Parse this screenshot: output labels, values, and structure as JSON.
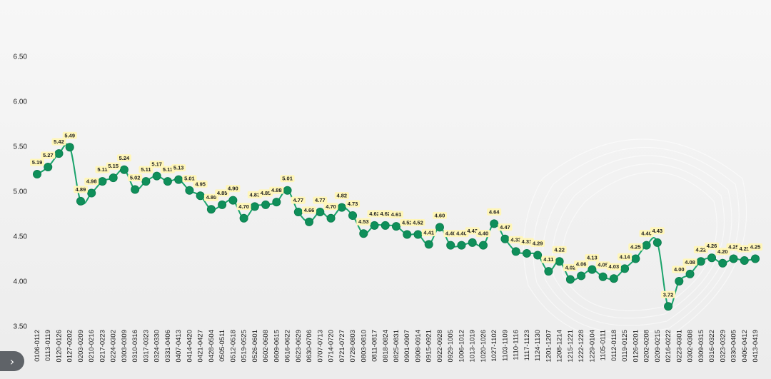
{
  "chart_data": {
    "type": "line",
    "title": "",
    "xlabel": "",
    "ylabel": "",
    "ylim": [
      3.5,
      6.5
    ],
    "yticks": [
      "3.50",
      "4.00",
      "4.50",
      "5.00",
      "5.50",
      "6.00",
      "6.50"
    ],
    "grid": false,
    "legend": "none",
    "line_color": "#1aa36b",
    "marker_color": "#0f8f5a",
    "label_bg_color": "#fff6b8",
    "categories": [
      "0106-0112",
      "0113-0119",
      "0120-0126",
      "0127-0202",
      "0203-0209",
      "0210-0216",
      "0217-0223",
      "0224-0302",
      "0303-0309",
      "0310-0316",
      "0317-0323",
      "0324-0330",
      "0331-0406",
      "0407-0413",
      "0414-0420",
      "0421-0427",
      "0428-0504",
      "0505-0511",
      "0512-0518",
      "0519-0525",
      "0526-0601",
      "0602-0608",
      "0609-0615",
      "0616-0622",
      "0623-0629",
      "0630-0706",
      "0707-0713",
      "0714-0720",
      "0721-0727",
      "0728-0803",
      "0803-0810",
      "0811-0817",
      "0818-0824",
      "0825-0831",
      "0901-0907",
      "0908-0914",
      "0915-0921",
      "0922-0928",
      "0929-1005",
      "1006-1012",
      "1013-1019",
      "1020-1026",
      "1027-1102",
      "1103-1109",
      "1110-1116",
      "1117-1123",
      "1124-1130",
      "1201-1207",
      "1208-1214",
      "1215-1221",
      "1222-1228",
      "1229-0104",
      "1105-0111",
      "0112-0118",
      "0119-0125",
      "0126-0201",
      "0202-0208",
      "0209-0215",
      "0216-0222",
      "0223-0301",
      "0302-0308",
      "0309-0315",
      "0316-0322",
      "0323-0329",
      "0330-0405",
      "0406-0412",
      "0413-0419"
    ],
    "values": [
      5.19,
      5.27,
      5.42,
      5.49,
      4.89,
      4.98,
      5.11,
      5.15,
      5.24,
      5.02,
      5.11,
      5.17,
      5.11,
      5.13,
      5.01,
      4.95,
      4.8,
      4.85,
      4.9,
      4.7,
      4.83,
      4.85,
      4.88,
      5.01,
      4.77,
      4.66,
      4.77,
      4.7,
      4.82,
      4.73,
      4.53,
      4.62,
      4.62,
      4.61,
      4.52,
      4.52,
      4.41,
      4.6,
      4.4,
      4.4,
      4.43,
      4.4,
      4.64,
      4.47,
      4.33,
      4.31,
      4.29,
      4.11,
      4.22,
      4.02,
      4.06,
      4.13,
      4.05,
      4.03,
      4.14,
      4.25,
      4.4,
      4.43,
      3.72,
      4.0,
      4.08,
      4.22,
      4.26,
      4.2,
      4.25,
      4.23,
      4.25
    ],
    "data_labels": [
      "5.19",
      "5.27",
      "5.42",
      "5.49",
      "4.89",
      "4.98",
      "5.11",
      "5.15",
      "5.24",
      "5.02",
      "5.11",
      "5.17",
      "5.11",
      "5.13",
      "5.01",
      "4.95",
      "4.80",
      "4.85",
      "4.90",
      "4.70",
      "4.83",
      "4.85",
      "4.88",
      "5.01",
      "4.77",
      "4.66",
      "4.77",
      "4.70",
      "4.82",
      "4.73",
      "4.53",
      "4.62",
      "4.62",
      "4.61",
      "4.52",
      "4.52",
      "4.41",
      "4.60",
      "4.40",
      "4.40",
      "4.43",
      "4.40",
      "4.64",
      "4.47",
      "4.33",
      "4.31",
      "4.29",
      "4.11",
      "4.22",
      "4.02",
      "4.06",
      "4.13",
      "4.05",
      "4.03",
      "4.14",
      "4.25",
      "4.40",
      "4.43",
      "3.72",
      "4.00",
      "4.08",
      "4.22",
      "4.26",
      "4.20",
      "4.25",
      "4.23",
      "4.25"
    ]
  },
  "nav": {
    "next_icon": "›"
  }
}
